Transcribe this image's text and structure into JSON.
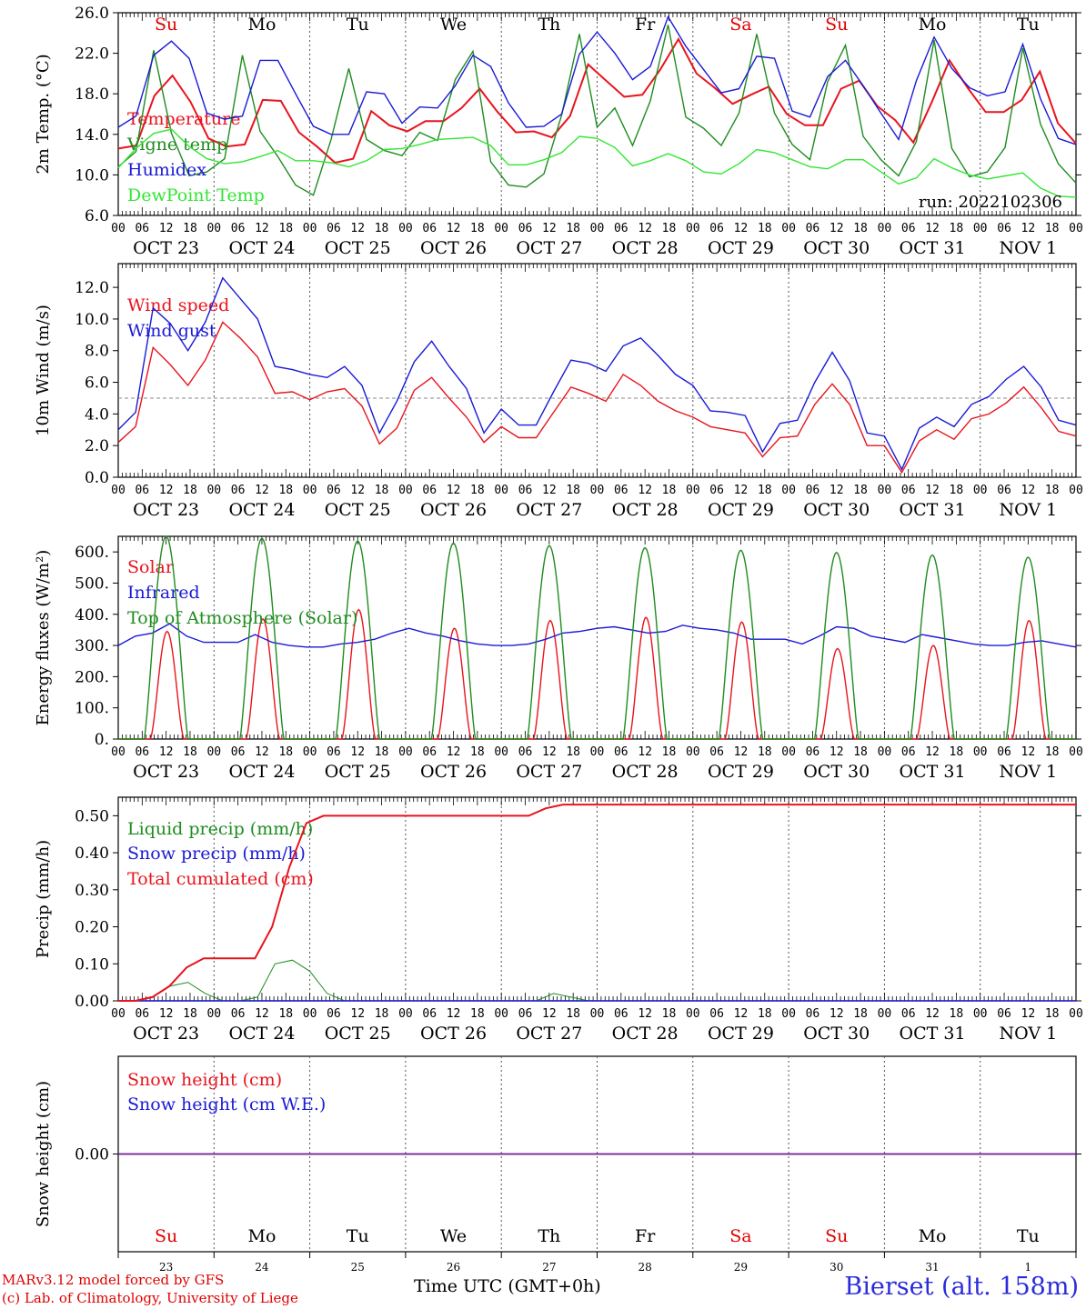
{
  "meta": {
    "run_label": "run: 2022102306",
    "credit_line1": "MARv3.12 model forced by GFS",
    "credit_line2": "(c) Lab. of Climatology, University of Liege",
    "time_axis_title": "Time UTC (GMT+0h)",
    "station": "Bierset (alt. 158m)"
  },
  "days": [
    "OCT 23",
    "OCT 24",
    "OCT 25",
    "OCT 26",
    "OCT 27",
    "OCT 28",
    "OCT 29",
    "OCT 30",
    "OCT 31",
    "NOV  1"
  ],
  "weekdays": [
    {
      "label": "Su",
      "color": "#e00000"
    },
    {
      "label": "Mo",
      "color": "#000000"
    },
    {
      "label": "Tu",
      "color": "#000000"
    },
    {
      "label": "We",
      "color": "#000000"
    },
    {
      "label": "Th",
      "color": "#000000"
    },
    {
      "label": "Fr",
      "color": "#000000"
    },
    {
      "label": "Sa",
      "color": "#e00000"
    },
    {
      "label": "Su",
      "color": "#e00000"
    },
    {
      "label": "Mo",
      "color": "#000000"
    },
    {
      "label": "Tu",
      "color": "#000000"
    }
  ],
  "day_numbers": [
    "23",
    "24",
    "25",
    "26",
    "27",
    "28",
    "29",
    "30",
    "31",
    "1"
  ],
  "hour_ticks": [
    "00",
    "06",
    "12",
    "18"
  ],
  "chart_data": [
    {
      "id": "temp",
      "type": "line",
      "ylabel": "2m Temp. (°C)",
      "ylim": [
        6,
        26
      ],
      "ytick_labels": [
        "6.0",
        "10.0",
        "14.0",
        "18.0",
        "22.0",
        "26.0"
      ],
      "ytick_values": [
        6,
        10,
        14,
        18,
        22,
        26
      ],
      "x_unit": "hours since OCT 23 00 UTC",
      "x_step": 6,
      "series": [
        {
          "name": "Temperature",
          "color": "#e8141e",
          "values": [
            12.6,
            12.9,
            17.8,
            19.8,
            17.2,
            13.6,
            12.8,
            13.0,
            17.4,
            17.3,
            14.2,
            12.8,
            11.2,
            11.6,
            16.3,
            14.9,
            14.3,
            15.3,
            15.3,
            16.6,
            18.5,
            16.2,
            14.2,
            14.3,
            13.7,
            15.8,
            20.9,
            19.3,
            17.7,
            17.9,
            20.4,
            23.4,
            20.0,
            18.6,
            17.0,
            17.9,
            18.7,
            16.0,
            14.9,
            14.9,
            18.5,
            19.3,
            16.8,
            15.4,
            13.2,
            17.1,
            21.3,
            18.6,
            16.2,
            16.2,
            17.4,
            20.2,
            15.1,
            13.1
          ]
        },
        {
          "name": "Vigne temp",
          "color": "#1e8c1e",
          "values": [
            10.8,
            12.3,
            22.3,
            14.1,
            9.9,
            10.3,
            11.6,
            21.8,
            14.3,
            11.8,
            9.0,
            8.0,
            13.5,
            20.5,
            13.5,
            12.4,
            11.9,
            14.2,
            13.4,
            19.4,
            22.2,
            11.3,
            9.0,
            8.8,
            10.1,
            15.9,
            23.9,
            14.7,
            16.6,
            12.9,
            17.3,
            24.8,
            15.7,
            14.6,
            12.9,
            16.1,
            23.9,
            16.1,
            13.0,
            11.5,
            19.2,
            22.8,
            13.8,
            11.5,
            9.9,
            13.3,
            23.3,
            12.6,
            9.8,
            10.3,
            12.7,
            22.5,
            15.0,
            11.1,
            9.2
          ]
        },
        {
          "name": "Humidex",
          "color": "#1a1ad6",
          "values": [
            14.7,
            15.8,
            21.8,
            23.2,
            21.5,
            16.1,
            15.5,
            15.8,
            21.3,
            21.3,
            18.0,
            14.8,
            14.0,
            14.0,
            18.2,
            18.0,
            15.1,
            16.7,
            16.6,
            18.8,
            21.8,
            20.7,
            17.1,
            14.7,
            14.8,
            16.0,
            21.9,
            24.1,
            22.0,
            19.4,
            20.7,
            25.6,
            22.7,
            20.4,
            18.1,
            18.5,
            21.7,
            21.5,
            16.3,
            15.7,
            19.7,
            21.3,
            18.8,
            16.1,
            13.5,
            19.3,
            23.6,
            20.5,
            18.6,
            17.8,
            18.2,
            22.9,
            17.5,
            13.6,
            13.0
          ]
        },
        {
          "name": "DewPoint Temp",
          "color": "#32e632",
          "values": [
            10.7,
            12.6,
            14.1,
            14.5,
            12.8,
            11.6,
            11.1,
            11.3,
            11.8,
            12.4,
            11.4,
            11.4,
            11.2,
            10.8,
            11.4,
            12.5,
            12.6,
            13.0,
            13.5,
            13.6,
            13.7,
            12.9,
            11.0,
            11.0,
            11.5,
            12.2,
            13.8,
            13.6,
            12.7,
            10.9,
            11.4,
            12.1,
            11.4,
            10.3,
            10.1,
            11.1,
            12.5,
            12.2,
            11.5,
            10.8,
            10.6,
            11.5,
            11.5,
            10.3,
            9.1,
            9.7,
            11.6,
            10.7,
            10.0,
            9.6,
            9.9,
            10.2,
            8.7,
            7.9,
            7.8
          ]
        }
      ]
    },
    {
      "id": "wind",
      "type": "line",
      "ylabel": "10m Wind (m/s)",
      "ylim": [
        0,
        13.5
      ],
      "ytick_labels": [
        "0.0",
        "2.0",
        "4.0",
        "6.0",
        "8.0",
        "10.0",
        "12.0"
      ],
      "ytick_values": [
        0,
        2,
        4,
        6,
        8,
        10,
        12
      ],
      "reference_line": 5,
      "series": [
        {
          "name": "Wind speed",
          "color": "#e8141e",
          "values": [
            2.2,
            3.2,
            8.2,
            7.1,
            5.8,
            7.4,
            9.8,
            8.8,
            7.6,
            5.3,
            5.4,
            4.9,
            5.4,
            5.6,
            4.5,
            2.1,
            3.1,
            5.5,
            6.3,
            5.0,
            3.8,
            2.2,
            3.2,
            2.5,
            2.5,
            4.1,
            5.7,
            5.3,
            4.8,
            6.5,
            5.8,
            4.8,
            4.2,
            3.8,
            3.2,
            3.0,
            2.8,
            1.3,
            2.5,
            2.6,
            4.6,
            5.9,
            4.6,
            2.0,
            2.0,
            0.3,
            2.3,
            3.0,
            2.4,
            3.7,
            4.0,
            4.7,
            5.7,
            4.4,
            2.9,
            2.6
          ]
        },
        {
          "name": "Wind gust",
          "color": "#1a1ad6",
          "values": [
            3.0,
            4.1,
            10.7,
            9.7,
            8.0,
            9.8,
            12.6,
            11.3,
            10.0,
            7.0,
            6.8,
            6.5,
            6.3,
            7.0,
            5.8,
            2.8,
            4.8,
            7.3,
            8.6,
            7.0,
            5.6,
            2.8,
            4.3,
            3.3,
            3.3,
            5.4,
            7.4,
            7.2,
            6.7,
            8.3,
            8.8,
            7.7,
            6.5,
            5.8,
            4.2,
            4.1,
            3.9,
            1.6,
            3.4,
            3.6,
            6.0,
            7.9,
            6.1,
            2.8,
            2.6,
            0.5,
            3.1,
            3.8,
            3.2,
            4.6,
            5.1,
            6.2,
            7.0,
            5.7,
            3.6,
            3.3
          ]
        }
      ]
    },
    {
      "id": "energy",
      "type": "line",
      "ylabel": "Energy fluxes (W/m²)",
      "ylim": [
        0,
        650
      ],
      "ytick_labels": [
        "0.",
        "100.",
        "200.",
        "300.",
        "400.",
        "500.",
        "600."
      ],
      "ytick_values": [
        0,
        100,
        200,
        300,
        400,
        500,
        600
      ],
      "series": [
        {
          "name": "Solar",
          "color": "#e8141e",
          "peaks": [
            {
              "day": 0,
              "value": 345
            },
            {
              "day": 1,
              "value": 385
            },
            {
              "day": 2,
              "value": 415
            },
            {
              "day": 3,
              "value": 355
            },
            {
              "day": 4,
              "value": 380
            },
            {
              "day": 5,
              "value": 390
            },
            {
              "day": 6,
              "value": 375
            },
            {
              "day": 7,
              "value": 290
            },
            {
              "day": 8,
              "value": 300
            },
            {
              "day": 9,
              "value": 380
            }
          ]
        },
        {
          "name": "Infrared",
          "color": "#1a1ad6",
          "values": [
            300,
            330,
            340,
            370,
            330,
            310,
            310,
            310,
            335,
            310,
            300,
            295,
            295,
            305,
            310,
            320,
            340,
            355,
            340,
            330,
            315,
            305,
            300,
            300,
            305,
            320,
            340,
            345,
            355,
            360,
            350,
            340,
            345,
            365,
            355,
            350,
            340,
            320,
            320,
            320,
            305,
            330,
            360,
            355,
            330,
            320,
            310,
            335,
            325,
            315,
            305,
            300,
            300,
            310,
            315,
            305,
            295
          ]
        },
        {
          "name": "Top of Atmosphere (Solar)",
          "color": "#1e8c1e",
          "peaks": [
            {
              "day": 0,
              "value": 650
            },
            {
              "day": 1,
              "value": 643
            },
            {
              "day": 2,
              "value": 635
            },
            {
              "day": 3,
              "value": 628
            },
            {
              "day": 4,
              "value": 620
            },
            {
              "day": 5,
              "value": 613
            },
            {
              "day": 6,
              "value": 605
            },
            {
              "day": 7,
              "value": 598
            },
            {
              "day": 8,
              "value": 590
            },
            {
              "day": 9,
              "value": 583
            }
          ]
        }
      ]
    },
    {
      "id": "precip",
      "type": "line",
      "ylabel": "Precip (mm/h)",
      "ylim": [
        0,
        0.55
      ],
      "ytick_labels": [
        "0.00",
        "0.10",
        "0.20",
        "0.30",
        "0.40",
        "0.50"
      ],
      "ytick_values": [
        0,
        0.1,
        0.2,
        0.3,
        0.4,
        0.5
      ],
      "series": [
        {
          "name": "Liquid precip (mm/h)",
          "color": "#1e8c1e",
          "values": [
            0,
            0,
            0.01,
            0.04,
            0.05,
            0.02,
            0,
            0,
            0.01,
            0.1,
            0.11,
            0.08,
            0.02,
            0,
            0,
            0,
            0,
            0,
            0,
            0,
            0,
            0,
            0,
            0,
            0,
            0.02,
            0.01,
            0,
            0,
            0,
            0,
            0,
            0,
            0,
            0,
            0,
            0,
            0,
            0,
            0,
            0,
            0,
            0,
            0,
            0,
            0,
            0,
            0,
            0,
            0,
            0,
            0,
            0,
            0,
            0,
            0
          ]
        },
        {
          "name": "Snow precip (mm/h)",
          "color": "#1a1ad6",
          "values": [
            0,
            0,
            0,
            0,
            0,
            0,
            0,
            0,
            0,
            0,
            0,
            0,
            0,
            0,
            0,
            0,
            0,
            0,
            0,
            0,
            0,
            0,
            0,
            0,
            0,
            0,
            0,
            0,
            0,
            0,
            0,
            0,
            0,
            0,
            0,
            0,
            0,
            0,
            0,
            0,
            0,
            0,
            0,
            0,
            0,
            0,
            0,
            0,
            0,
            0,
            0,
            0,
            0,
            0,
            0,
            0,
            0
          ]
        },
        {
          "name": "Total cumulated (cm)",
          "color": "#e8141e",
          "values": [
            0,
            0,
            0.01,
            0.04,
            0.09,
            0.115,
            0.115,
            0.115,
            0.115,
            0.2,
            0.36,
            0.48,
            0.5,
            0.5,
            0.5,
            0.5,
            0.5,
            0.5,
            0.5,
            0.5,
            0.5,
            0.5,
            0.5,
            0.5,
            0.5,
            0.52,
            0.53,
            0.53,
            0.53,
            0.53,
            0.53,
            0.53,
            0.53,
            0.53,
            0.53,
            0.53,
            0.53,
            0.53,
            0.53,
            0.53,
            0.53,
            0.53,
            0.53,
            0.53,
            0.53,
            0.53,
            0.53,
            0.53,
            0.53,
            0.53,
            0.53,
            0.53,
            0.53,
            0.53,
            0.53,
            0.53,
            0.53
          ]
        }
      ]
    },
    {
      "id": "snow",
      "type": "line",
      "ylabel": "Snow height (cm)",
      "ylim": [
        -1,
        1
      ],
      "ytick_labels": [
        "0.00"
      ],
      "ytick_values": [
        0
      ],
      "series": [
        {
          "name": "Snow height (cm)",
          "color": "#e8141e",
          "values": [
            0,
            0
          ]
        },
        {
          "name": "Snow height (cm W.E.)",
          "color": "#1a1ad6",
          "values": [
            0,
            0
          ]
        }
      ]
    }
  ]
}
